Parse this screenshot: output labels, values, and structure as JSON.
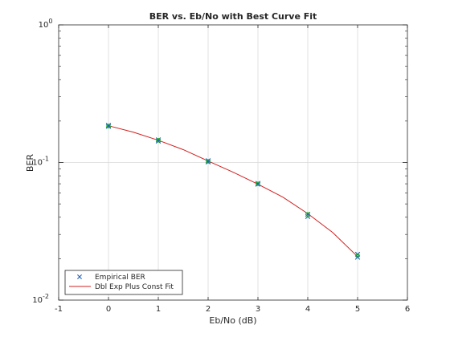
{
  "chart_data": {
    "type": "line",
    "title": "BER vs. Eb/No with Best Curve Fit",
    "xlabel": "Eb/No (dB)",
    "ylabel": "BER",
    "xlim": [
      -1,
      6
    ],
    "ylim": [
      0.01,
      1
    ],
    "yscale": "log",
    "grid": true,
    "legend_position": "bottom-left",
    "x_ticks": [
      "-1",
      "0",
      "1",
      "2",
      "3",
      "4",
      "5",
      "6"
    ],
    "y_ticks": [
      {
        "value": 0.01,
        "base": "10",
        "exp": "-2"
      },
      {
        "value": 0.1,
        "base": "10",
        "exp": "-1"
      },
      {
        "value": 1,
        "base": "10",
        "exp": "0"
      }
    ],
    "series": [
      {
        "name": "Empirical BER",
        "kind": "scatter",
        "marker": "x",
        "color": "#1f5fbf",
        "x": [
          0,
          0,
          1,
          1,
          2,
          2,
          3,
          3,
          4,
          4,
          5,
          5
        ],
        "y": [
          0.183,
          0.186,
          0.143,
          0.146,
          0.101,
          0.103,
          0.0695,
          0.0705,
          0.042,
          0.0405,
          0.0215,
          0.0205
        ]
      },
      {
        "name": "Empirical BER",
        "kind": "scatter",
        "marker": "o",
        "color": "#22c000",
        "x": [
          0,
          1,
          2,
          3,
          4,
          5
        ],
        "y": [
          0.184,
          0.145,
          0.102,
          0.07,
          0.042,
          0.021
        ]
      },
      {
        "name": "Dbl Exp Plus Const Fit",
        "kind": "line",
        "color": "#d21f1f",
        "x": [
          0,
          0.5,
          1,
          1.5,
          2,
          2.5,
          3,
          3.5,
          4,
          4.5,
          5
        ],
        "y": [
          0.185,
          0.166,
          0.145,
          0.124,
          0.1025,
          0.085,
          0.0695,
          0.056,
          0.0425,
          0.031,
          0.0207
        ]
      }
    ],
    "legend": [
      {
        "label": "Empirical BER",
        "symbol": "marker",
        "color": "#1f5fbf"
      },
      {
        "label": "Dbl Exp Plus Const Fit",
        "symbol": "line",
        "color": "#d21f1f"
      }
    ]
  }
}
